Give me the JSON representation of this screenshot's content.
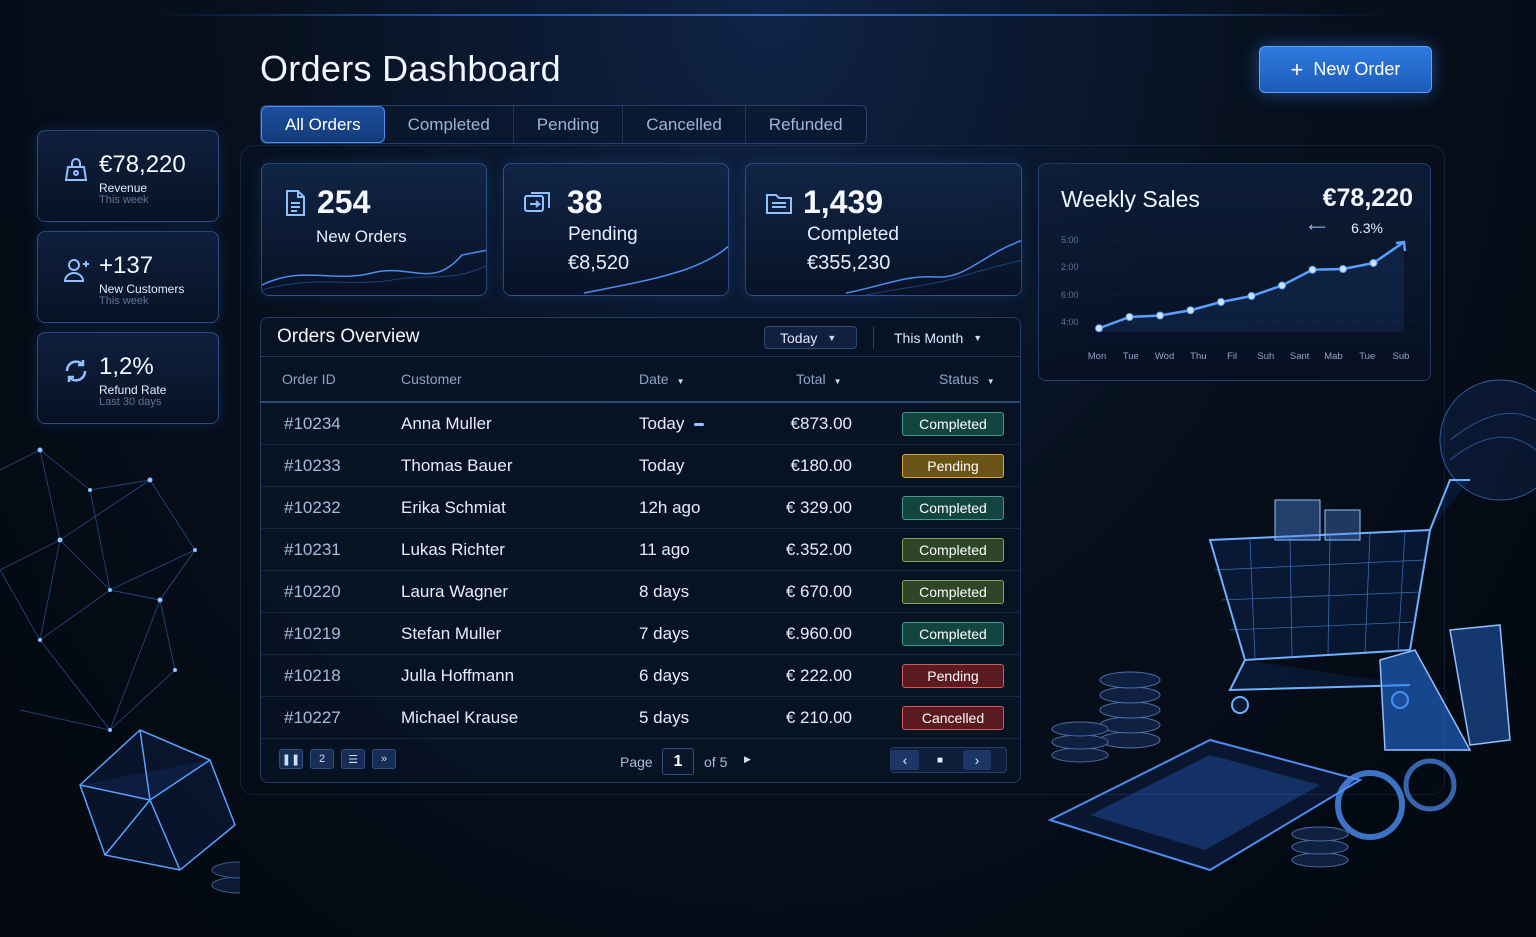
{
  "header": {
    "title": "Orders Dashboard",
    "new_order_label": "New Order"
  },
  "tabs": [
    {
      "label": "All Orders",
      "active": true
    },
    {
      "label": "Completed"
    },
    {
      "label": "Pending"
    },
    {
      "label": "Cancelled"
    },
    {
      "label": "Refunded"
    }
  ],
  "side_cards": [
    {
      "value": "€78,220",
      "label": "Revenue",
      "sub": "This week",
      "icon": "lock-bag-icon"
    },
    {
      "value": "+137",
      "label": "New Customers",
      "sub": "This week",
      "icon": "add-user-icon"
    },
    {
      "value": "1,2%",
      "label": "Refund Rate",
      "sub": "Last 30 days",
      "icon": "refresh-icon"
    }
  ],
  "stat_cards": [
    {
      "value": "254",
      "label": "New Orders",
      "icon": "document-icon"
    },
    {
      "value": "38",
      "label": "Pending",
      "amount": "€8,520",
      "icon": "transfer-icon"
    },
    {
      "value": "1,439",
      "label": "Completed",
      "amount": "€355,230",
      "icon": "folder-icon"
    }
  ],
  "weekly_sales": {
    "title": "Weekly Sales",
    "total": "€78,220",
    "change": "6.3%",
    "y_labels": [
      "5:00",
      "2:00",
      "6:00",
      "4:00"
    ],
    "x_labels": [
      "Mon",
      "Tue",
      "Wod",
      "Thu",
      "Fil",
      "Suh",
      "Sant",
      "Mab",
      "Tue",
      "Sub"
    ],
    "values": [
      0.05,
      0.2,
      0.22,
      0.29,
      0.4,
      0.48,
      0.62,
      0.83,
      0.84,
      0.92,
      1.2
    ]
  },
  "orders": {
    "title": "Orders Overview",
    "filter_today": "Today",
    "filter_month": "This Month",
    "columns": {
      "id": "Order ID",
      "customer": "Customer",
      "date": "Date",
      "total": "Total",
      "status": "Status"
    },
    "rows": [
      {
        "id": "#10234",
        "customer": "Anna Muller",
        "date": "Today",
        "total": "€873.00",
        "status": "Completed",
        "style": "teal"
      },
      {
        "id": "#10233",
        "customer": "Thomas Bauer",
        "date": "Today",
        "total": "€180.00",
        "status": "Pending",
        "style": "amber"
      },
      {
        "id": "#10232",
        "customer": "Erika Schmiat",
        "date": "12h ago",
        "total": "€ 329.00",
        "status": "Completed",
        "style": "teal"
      },
      {
        "id": "#10231",
        "customer": "Lukas Richter",
        "date": "11 ago",
        "total": "€.352.00",
        "status": "Completed",
        "style": "olive"
      },
      {
        "id": "#10220",
        "customer": "Laura Wagner",
        "date": "8 days",
        "total": "€ 670.00",
        "status": "Completed",
        "style": "olive"
      },
      {
        "id": "#10219",
        "customer": "Stefan Muller",
        "date": "7 days",
        "total": "€.960.00",
        "status": "Completed",
        "style": "teal"
      },
      {
        "id": "#10218",
        "customer": "Julla Hoffmann",
        "date": "6 days",
        "total": "€ 222.00",
        "status": "Pending",
        "style": "red"
      },
      {
        "id": "#10227",
        "customer": "Michael Krause",
        "date": "5 days",
        "total": "€ 210.00",
        "status": "Cancelled",
        "style": "red"
      }
    ],
    "pagination": {
      "btn_pause": "❚❚",
      "btn_page2": "2",
      "btn_list": "☰",
      "btn_fwd": "»",
      "page_label": "Page",
      "current_page": "1",
      "of_label": "of 5",
      "prev": "‹",
      "stop": "■",
      "next": "›"
    }
  },
  "colors": {
    "accent": "#2f7be0",
    "background": "#07111f",
    "panel_border": "#5090e6"
  }
}
